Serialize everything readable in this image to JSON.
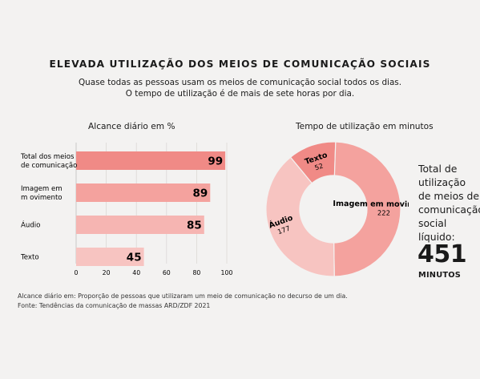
{
  "title": "ELEVADA UTILIZAÇÃO DOS MEIOS DE COMUNICAÇÃO SOCIAIS",
  "subtitle_line1": "Quase todas as pessoas usam os meios de comunicação social todos os dias.",
  "subtitle_line2": "O tempo de utilização é de mais de sete horas por dia.",
  "bar_title": "Alcance diário em %",
  "donut_title": "Tempo de utilização em minutos",
  "total_line1": "Total de",
  "total_line2": "utilização",
  "total_line3": "de meios de",
  "total_line4": "comunicação",
  "total_line5": "social",
  "total_line6": "líquido:",
  "total_value": "451",
  "total_unit": "MINUTOS",
  "footnote": "Alcance diário em: Proporção de pessoas que utilizaram um meio de comunicação no decurso de um dia. Fonte: Tendências da comunicação de massas ARD/ZDF 2021",
  "chart_data": [
    {
      "type": "bar",
      "orientation": "horizontal",
      "title": "Alcance diário em %",
      "categories": [
        [
          "Total dos meios",
          "de comunicação"
        ],
        [
          "Imagem em",
          "m ovimento"
        ],
        [
          "Áudio"
        ],
        [
          "Texto"
        ]
      ],
      "values": [
        99,
        89,
        85,
        45
      ],
      "colors": [
        "#f08a86",
        "#f4a29e",
        "#f6b5b2",
        "#f7c4c1"
      ],
      "xlim": [
        0,
        100
      ],
      "xticks": [
        0,
        20,
        40,
        60,
        80,
        100
      ],
      "grid": true
    },
    {
      "type": "pie",
      "style": "donut",
      "title": "Tempo de utilização em minutos",
      "slices": [
        {
          "label": "Texto",
          "value": 52,
          "color": "#f08a86"
        },
        {
          "label": "Imagem em movimento",
          "value": 222,
          "color": "#f4a29e"
        },
        {
          "label": "Áudio",
          "value": 177,
          "color": "#f7c4c1"
        }
      ]
    }
  ]
}
